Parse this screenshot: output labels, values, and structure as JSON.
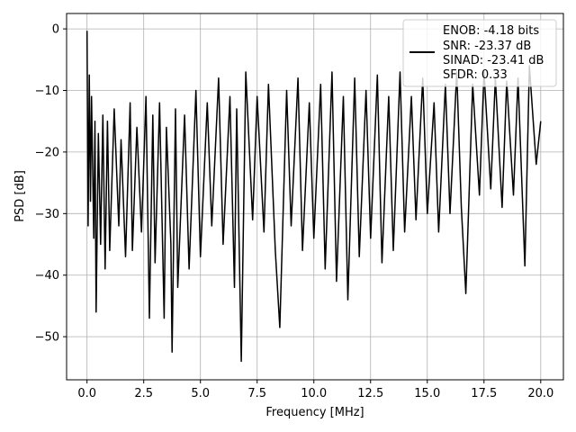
{
  "chart_data": {
    "type": "line",
    "title": "",
    "xlabel": "Frequency [MHz]",
    "ylabel": "PSD [dB]",
    "xlim": [
      -0.9,
      21.0
    ],
    "ylim": [
      -57.0,
      2.5
    ],
    "xticks": [
      0.0,
      2.5,
      5.0,
      7.5,
      10.0,
      12.5,
      15.0,
      17.5,
      20.0
    ],
    "xtick_labels": [
      "0.0",
      "2.5",
      "5.0",
      "7.5",
      "10.0",
      "12.5",
      "15.0",
      "17.5",
      "20.0"
    ],
    "yticks": [
      0,
      -10,
      -20,
      -30,
      -40,
      -50
    ],
    "ytick_labels": [
      "0",
      "−10",
      "−20",
      "−30",
      "−40",
      "−50"
    ],
    "grid": true,
    "legend_position": "top-right",
    "legend_lines": [
      "ENOB: -4.18 bits",
      "SNR: -23.37 dB",
      "SINAD: -23.41 dB",
      "SFDR: 0.33"
    ],
    "series": [
      {
        "color": "#000000",
        "x": [
          0.0,
          0.05,
          0.1,
          0.15,
          0.2,
          0.3,
          0.35,
          0.4,
          0.5,
          0.6,
          0.7,
          0.8,
          0.9,
          1.0,
          1.2,
          1.4,
          1.5,
          1.7,
          1.9,
          2.0,
          2.2,
          2.4,
          2.6,
          2.75,
          2.9,
          3.0,
          3.2,
          3.4,
          3.5,
          3.7,
          3.75,
          3.9,
          4.0,
          4.3,
          4.5,
          4.8,
          5.0,
          5.3,
          5.5,
          5.8,
          6.0,
          6.3,
          6.5,
          6.6,
          6.8,
          7.0,
          7.3,
          7.5,
          7.8,
          8.0,
          8.3,
          8.5,
          8.8,
          9.0,
          9.3,
          9.5,
          9.8,
          10.0,
          10.3,
          10.5,
          10.8,
          11.0,
          11.3,
          11.5,
          11.8,
          12.0,
          12.3,
          12.5,
          12.8,
          13.0,
          13.3,
          13.5,
          13.8,
          14.0,
          14.3,
          14.5,
          14.8,
          15.0,
          15.3,
          15.5,
          15.8,
          16.0,
          16.3,
          16.5,
          16.7,
          17.0,
          17.3,
          17.5,
          17.8,
          18.0,
          18.3,
          18.5,
          18.8,
          19.0,
          19.3,
          19.5,
          19.8,
          20.0
        ],
        "y": [
          -0.3,
          -32.0,
          -7.5,
          -28.0,
          -11.0,
          -34.0,
          -15.0,
          -46.0,
          -17.0,
          -35.0,
          -14.0,
          -39.0,
          -15.0,
          -36.0,
          -13.0,
          -32.0,
          -18.0,
          -37.0,
          -12.0,
          -36.0,
          -16.0,
          -33.0,
          -11.0,
          -47.0,
          -14.0,
          -38.0,
          -12.0,
          -47.0,
          -16.0,
          -35.0,
          -52.5,
          -13.0,
          -42.0,
          -14.0,
          -39.0,
          -10.0,
          -37.0,
          -12.0,
          -32.0,
          -8.0,
          -35.0,
          -11.0,
          -42.0,
          -13.0,
          -54.0,
          -7.0,
          -31.0,
          -11.0,
          -33.0,
          -9.0,
          -36.0,
          -48.5,
          -10.0,
          -32.0,
          -8.0,
          -36.0,
          -12.0,
          -34.0,
          -9.0,
          -39.0,
          -7.0,
          -41.0,
          -11.0,
          -44.0,
          -8.0,
          -37.0,
          -10.0,
          -34.0,
          -7.5,
          -38.0,
          -11.0,
          -36.0,
          -7.0,
          -33.0,
          -11.0,
          -31.0,
          -8.0,
          -30.0,
          -12.0,
          -33.0,
          -9.0,
          -30.0,
          -7.0,
          -29.0,
          -43.0,
          -9.0,
          -27.0,
          -7.0,
          -26.0,
          -8.0,
          -29.0,
          -8.5,
          -27.0,
          -8.0,
          -38.5,
          -6.0,
          -22.0,
          -15.0
        ]
      }
    ]
  }
}
